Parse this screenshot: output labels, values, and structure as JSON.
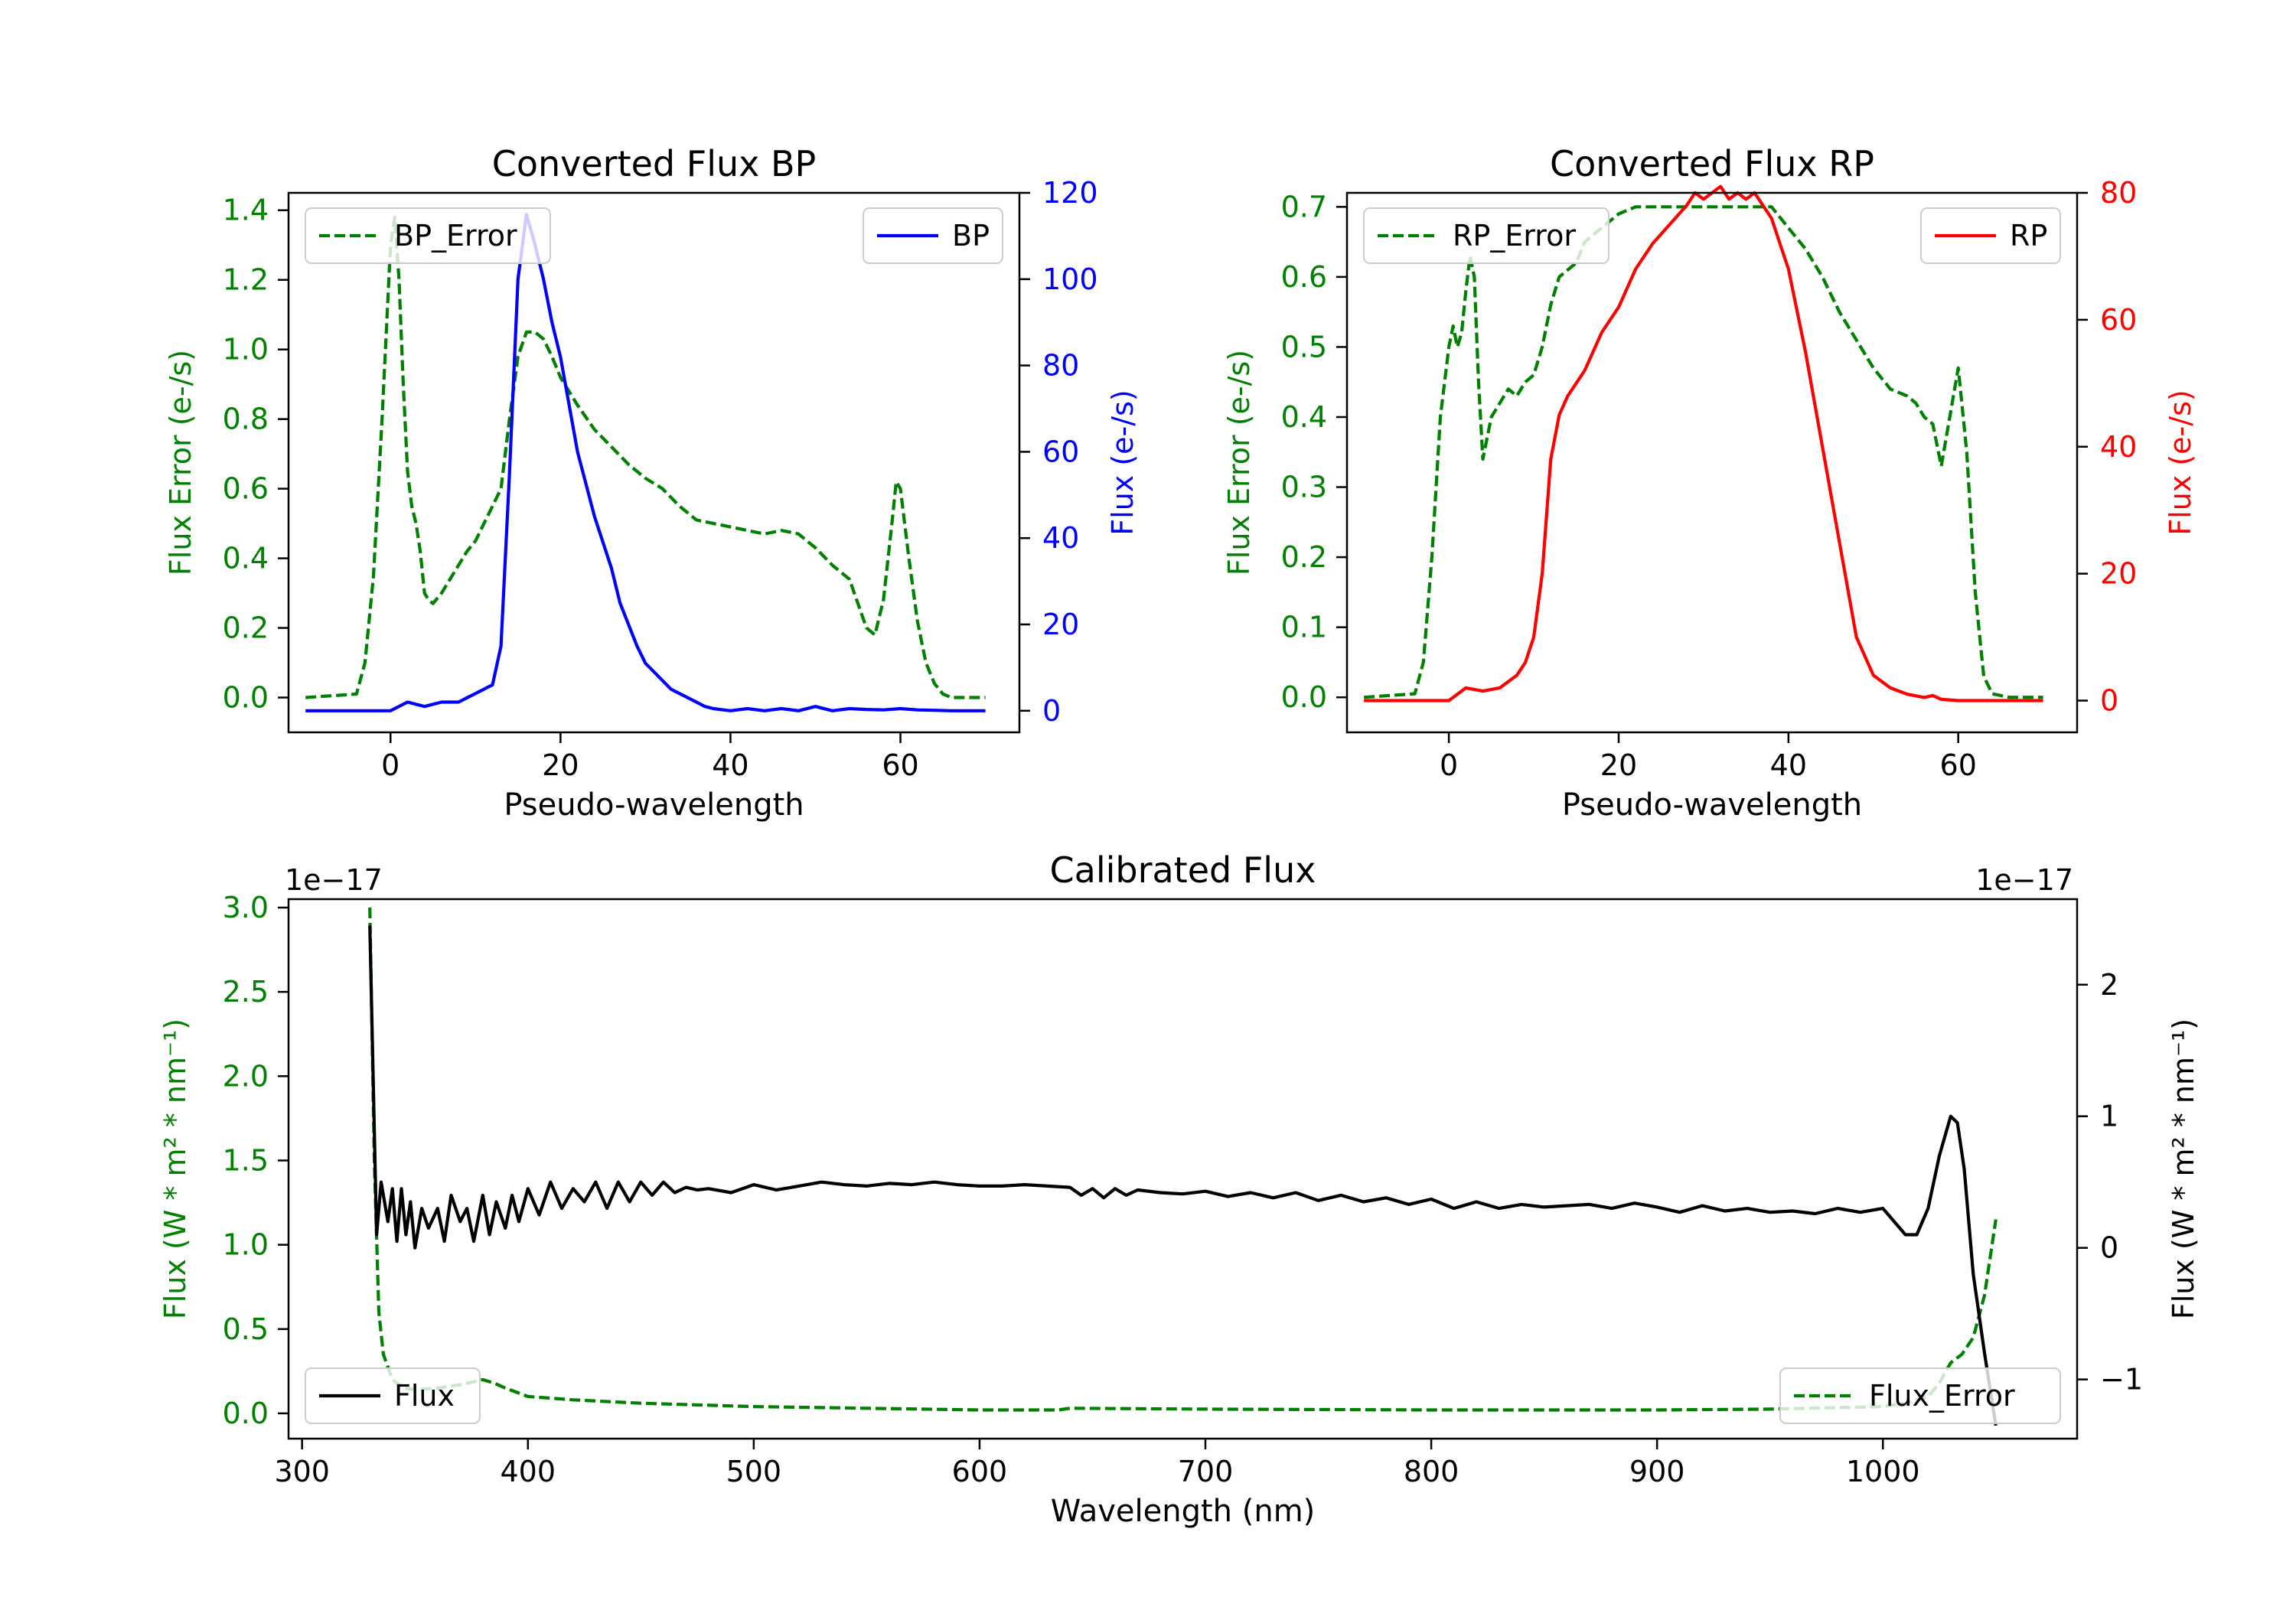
{
  "chart_data": [
    {
      "type": "line",
      "title": "Converted Flux BP",
      "xlabel": "Pseudo-wavelength",
      "ylabel_left": "Flux Error (e-/s)",
      "ylabel_right": "Flux (e-/s)",
      "xlim": [
        -12,
        74
      ],
      "ylim_left": [
        -0.1,
        1.45
      ],
      "ylim_right": [
        -5,
        120
      ],
      "xticks": [
        "0",
        "20",
        "40",
        "60"
      ],
      "xtick_values": [
        0,
        20,
        40,
        60
      ],
      "yticks_left": [
        "0.0",
        "0.2",
        "0.4",
        "0.6",
        "0.8",
        "1.0",
        "1.2",
        "1.4"
      ],
      "ytick_values_left": [
        0,
        0.2,
        0.4,
        0.6,
        0.8,
        1.0,
        1.2,
        1.4
      ],
      "yticks_right": [
        "0",
        "20",
        "40",
        "60",
        "80",
        "100",
        "120"
      ],
      "ytick_values_right": [
        0,
        20,
        40,
        60,
        80,
        100,
        120
      ],
      "left_color": "#008000",
      "right_color": "#0000ff",
      "series": [
        {
          "name": "BP_Error",
          "axis": "left",
          "style": "dashed",
          "color": "#008000",
          "x": [
            -10,
            -4,
            -3,
            -2,
            -1,
            0,
            0.5,
            1,
            1.5,
            2,
            2.5,
            3,
            3.5,
            4,
            4.5,
            5,
            6,
            7,
            8,
            9,
            10,
            11,
            12,
            13,
            14,
            15,
            16,
            17,
            18,
            19,
            20,
            22,
            24,
            26,
            28,
            30,
            32,
            34,
            36,
            38,
            40,
            42,
            44,
            46,
            48,
            50,
            52,
            54,
            56,
            57,
            58,
            59,
            59.5,
            60,
            61,
            62,
            63,
            64,
            65,
            66,
            68,
            70
          ],
          "values": [
            0,
            0.01,
            0.1,
            0.35,
            0.8,
            1.3,
            1.38,
            1.2,
            0.9,
            0.65,
            0.55,
            0.5,
            0.42,
            0.3,
            0.28,
            0.27,
            0.3,
            0.34,
            0.38,
            0.42,
            0.45,
            0.5,
            0.55,
            0.6,
            0.8,
            0.98,
            1.05,
            1.05,
            1.03,
            0.98,
            0.92,
            0.84,
            0.77,
            0.72,
            0.67,
            0.63,
            0.6,
            0.55,
            0.51,
            0.5,
            0.49,
            0.48,
            0.47,
            0.48,
            0.47,
            0.43,
            0.38,
            0.34,
            0.2,
            0.18,
            0.28,
            0.5,
            0.62,
            0.6,
            0.4,
            0.22,
            0.1,
            0.04,
            0.01,
            0,
            0,
            0
          ]
        },
        {
          "name": "BP",
          "axis": "right",
          "style": "solid",
          "color": "#0000ff",
          "x": [
            -10,
            0,
            2,
            4,
            6,
            8,
            10,
            11,
            12,
            13,
            14,
            15,
            16,
            17,
            18,
            19,
            20,
            22,
            24,
            26,
            27,
            28,
            29,
            30,
            31,
            32,
            33,
            34,
            35,
            36,
            37,
            38,
            40,
            42,
            44,
            46,
            48,
            50,
            52,
            54,
            56,
            58,
            60,
            62,
            64,
            66,
            68,
            70
          ],
          "values": [
            0,
            0,
            2,
            1,
            2,
            2,
            4,
            5,
            6,
            15,
            55,
            100,
            115,
            108,
            100,
            90,
            82,
            60,
            45,
            33,
            25,
            20,
            15,
            11,
            9,
            7,
            5,
            4,
            3,
            2,
            1,
            0.5,
            0,
            0.5,
            0,
            0.5,
            0,
            1,
            0,
            0.5,
            0.3,
            0.2,
            0.5,
            0.2,
            0.1,
            0,
            0,
            0
          ]
        }
      ],
      "legend_left": {
        "label": "BP_Error",
        "position": "upper-left"
      },
      "legend_right": {
        "label": "BP",
        "position": "upper-right"
      }
    },
    {
      "type": "line",
      "title": "Converted Flux RP",
      "xlabel": "Pseudo-wavelength",
      "ylabel_left": "Flux Error (e-/s)",
      "ylabel_right": "Flux (e-/s)",
      "xlim": [
        -12,
        74
      ],
      "ylim_left": [
        -0.05,
        0.72
      ],
      "ylim_right": [
        -5,
        80
      ],
      "xticks": [
        "0",
        "20",
        "40",
        "60"
      ],
      "xtick_values": [
        0,
        20,
        40,
        60
      ],
      "yticks_left": [
        "0.0",
        "0.1",
        "0.2",
        "0.3",
        "0.4",
        "0.5",
        "0.6",
        "0.7"
      ],
      "ytick_values_left": [
        0,
        0.1,
        0.2,
        0.3,
        0.4,
        0.5,
        0.6,
        0.7
      ],
      "yticks_right": [
        "0",
        "20",
        "40",
        "60",
        "80"
      ],
      "ytick_values_right": [
        0,
        20,
        40,
        60,
        80
      ],
      "left_color": "#008000",
      "right_color": "#ff0000",
      "series": [
        {
          "name": "RP_Error",
          "axis": "left",
          "style": "dashed",
          "color": "#008000",
          "x": [
            -10,
            -4,
            -3,
            -2,
            -1,
            0,
            0.5,
            1,
            1.5,
            2,
            2.5,
            3,
            3.5,
            4,
            5,
            6,
            7,
            8,
            9,
            10,
            11,
            12,
            13,
            14,
            15,
            16,
            18,
            20,
            22,
            24,
            26,
            28,
            30,
            32,
            34,
            36,
            38,
            40,
            42,
            44,
            46,
            48,
            50,
            52,
            54,
            55,
            56,
            57,
            58,
            59,
            60,
            61,
            62,
            63,
            64,
            66,
            68,
            70
          ],
          "values": [
            0,
            0.005,
            0.05,
            0.2,
            0.4,
            0.5,
            0.53,
            0.5,
            0.52,
            0.58,
            0.63,
            0.6,
            0.45,
            0.34,
            0.4,
            0.42,
            0.44,
            0.43,
            0.45,
            0.46,
            0.5,
            0.56,
            0.6,
            0.61,
            0.62,
            0.65,
            0.67,
            0.69,
            0.7,
            0.7,
            0.7,
            0.7,
            0.7,
            0.7,
            0.7,
            0.7,
            0.7,
            0.67,
            0.64,
            0.6,
            0.55,
            0.51,
            0.47,
            0.44,
            0.43,
            0.42,
            0.4,
            0.39,
            0.33,
            0.4,
            0.47,
            0.35,
            0.15,
            0.03,
            0.005,
            0,
            0,
            0
          ]
        },
        {
          "name": "RP",
          "axis": "right",
          "style": "solid",
          "color": "#ff0000",
          "x": [
            -10,
            0,
            2,
            4,
            6,
            8,
            9,
            10,
            11,
            12,
            13,
            14,
            15,
            16,
            18,
            20,
            22,
            24,
            26,
            28,
            29,
            30,
            31,
            32,
            33,
            34,
            35,
            36,
            37,
            38,
            39,
            40,
            42,
            44,
            46,
            48,
            50,
            52,
            54,
            56,
            57,
            58,
            60,
            62,
            64,
            66,
            68,
            70
          ],
          "values": [
            0,
            0,
            2,
            1.5,
            2,
            4,
            6,
            10,
            20,
            38,
            45,
            48,
            50,
            52,
            58,
            62,
            68,
            72,
            75,
            78,
            80,
            79,
            80,
            81,
            79,
            80,
            79,
            80,
            78,
            76,
            72,
            68,
            55,
            40,
            25,
            10,
            4,
            2,
            1,
            0.5,
            0.8,
            0.2,
            0,
            0,
            0,
            0,
            0,
            0
          ]
        }
      ],
      "legend_left": {
        "label": "RP_Error",
        "position": "upper-left"
      },
      "legend_right": {
        "label": "RP",
        "position": "upper-right"
      }
    },
    {
      "type": "line",
      "title": "Calibrated Flux",
      "xlabel": "Wavelength (nm)",
      "ylabel_left": "Flux (W * m² * nm⁻¹)",
      "ylabel_right": "Flux (W * m² * nm⁻¹)",
      "offset_left": "1e−17",
      "offset_right": "1e−17",
      "xlim": [
        294,
        1086
      ],
      "ylim_left": [
        -0.15,
        3.05
      ],
      "ylim_right": [
        -1.45,
        2.65
      ],
      "xticks": [
        "300",
        "400",
        "500",
        "600",
        "700",
        "800",
        "900",
        "1000"
      ],
      "xtick_values": [
        300,
        400,
        500,
        600,
        700,
        800,
        900,
        1000
      ],
      "yticks_left": [
        "0.0",
        "0.5",
        "1.0",
        "1.5",
        "2.0",
        "2.5",
        "3.0"
      ],
      "ytick_values_left": [
        0,
        0.5,
        1.0,
        1.5,
        2.0,
        2.5,
        3.0
      ],
      "yticks_right": [
        "−1",
        "0",
        "1",
        "2"
      ],
      "ytick_values_right": [
        -1,
        0,
        1,
        2
      ],
      "left_color": "#008000",
      "right_color": "#000000",
      "series": [
        {
          "name": "Flux_Error",
          "axis": "left",
          "style": "dashed",
          "color": "#008000",
          "x": [
            330,
            332,
            334,
            336,
            340,
            345,
            350,
            360,
            370,
            380,
            385,
            390,
            400,
            420,
            450,
            500,
            550,
            600,
            635,
            640,
            700,
            800,
            900,
            950,
            1000,
            1010,
            1020,
            1025,
            1030,
            1035,
            1040,
            1045,
            1050
          ],
          "values": [
            3.0,
            1.5,
            0.6,
            0.35,
            0.2,
            0.15,
            0.14,
            0.15,
            0.17,
            0.2,
            0.18,
            0.15,
            0.1,
            0.08,
            0.06,
            0.04,
            0.03,
            0.02,
            0.02,
            0.03,
            0.025,
            0.02,
            0.02,
            0.025,
            0.04,
            0.06,
            0.1,
            0.18,
            0.3,
            0.35,
            0.45,
            0.7,
            1.15
          ]
        },
        {
          "name": "Flux",
          "axis": "right",
          "style": "solid",
          "color": "#000000",
          "x": [
            330,
            333,
            335,
            338,
            340,
            342,
            344,
            346,
            348,
            350,
            353,
            356,
            360,
            363,
            366,
            370,
            373,
            376,
            380,
            383,
            386,
            390,
            393,
            396,
            400,
            405,
            410,
            415,
            420,
            425,
            430,
            435,
            440,
            445,
            450,
            455,
            460,
            465,
            470,
            475,
            480,
            490,
            500,
            510,
            520,
            530,
            540,
            550,
            560,
            570,
            580,
            590,
            600,
            610,
            620,
            630,
            640,
            645,
            650,
            655,
            660,
            665,
            670,
            680,
            690,
            700,
            710,
            720,
            730,
            740,
            750,
            760,
            770,
            780,
            790,
            800,
            810,
            820,
            830,
            840,
            850,
            860,
            870,
            880,
            890,
            900,
            910,
            920,
            930,
            940,
            950,
            960,
            970,
            980,
            990,
            1000,
            1010,
            1015,
            1020,
            1025,
            1030,
            1033,
            1036,
            1040,
            1045,
            1050
          ],
          "values": [
            2.45,
            0.1,
            0.5,
            0.2,
            0.45,
            0.05,
            0.45,
            0.1,
            0.35,
            0,
            0.3,
            0.15,
            0.3,
            0.05,
            0.4,
            0.2,
            0.3,
            0.05,
            0.4,
            0.1,
            0.35,
            0.15,
            0.4,
            0.2,
            0.45,
            0.25,
            0.5,
            0.3,
            0.45,
            0.35,
            0.5,
            0.3,
            0.5,
            0.35,
            0.5,
            0.4,
            0.5,
            0.42,
            0.46,
            0.44,
            0.45,
            0.42,
            0.48,
            0.44,
            0.47,
            0.5,
            0.48,
            0.47,
            0.49,
            0.48,
            0.5,
            0.48,
            0.47,
            0.47,
            0.48,
            0.47,
            0.46,
            0.4,
            0.45,
            0.38,
            0.45,
            0.4,
            0.44,
            0.42,
            0.41,
            0.43,
            0.39,
            0.42,
            0.38,
            0.42,
            0.36,
            0.4,
            0.35,
            0.38,
            0.33,
            0.37,
            0.3,
            0.35,
            0.3,
            0.33,
            0.31,
            0.32,
            0.33,
            0.3,
            0.34,
            0.31,
            0.27,
            0.32,
            0.28,
            0.3,
            0.27,
            0.28,
            0.26,
            0.3,
            0.27,
            0.3,
            0.1,
            0.1,
            0.3,
            0.7,
            1.0,
            0.95,
            0.6,
            -0.2,
            -0.8,
            -1.35
          ]
        }
      ],
      "legend_left": {
        "label": "Flux",
        "position": "lower-left"
      },
      "legend_right": {
        "label": "Flux_Error",
        "position": "lower-right"
      }
    }
  ]
}
